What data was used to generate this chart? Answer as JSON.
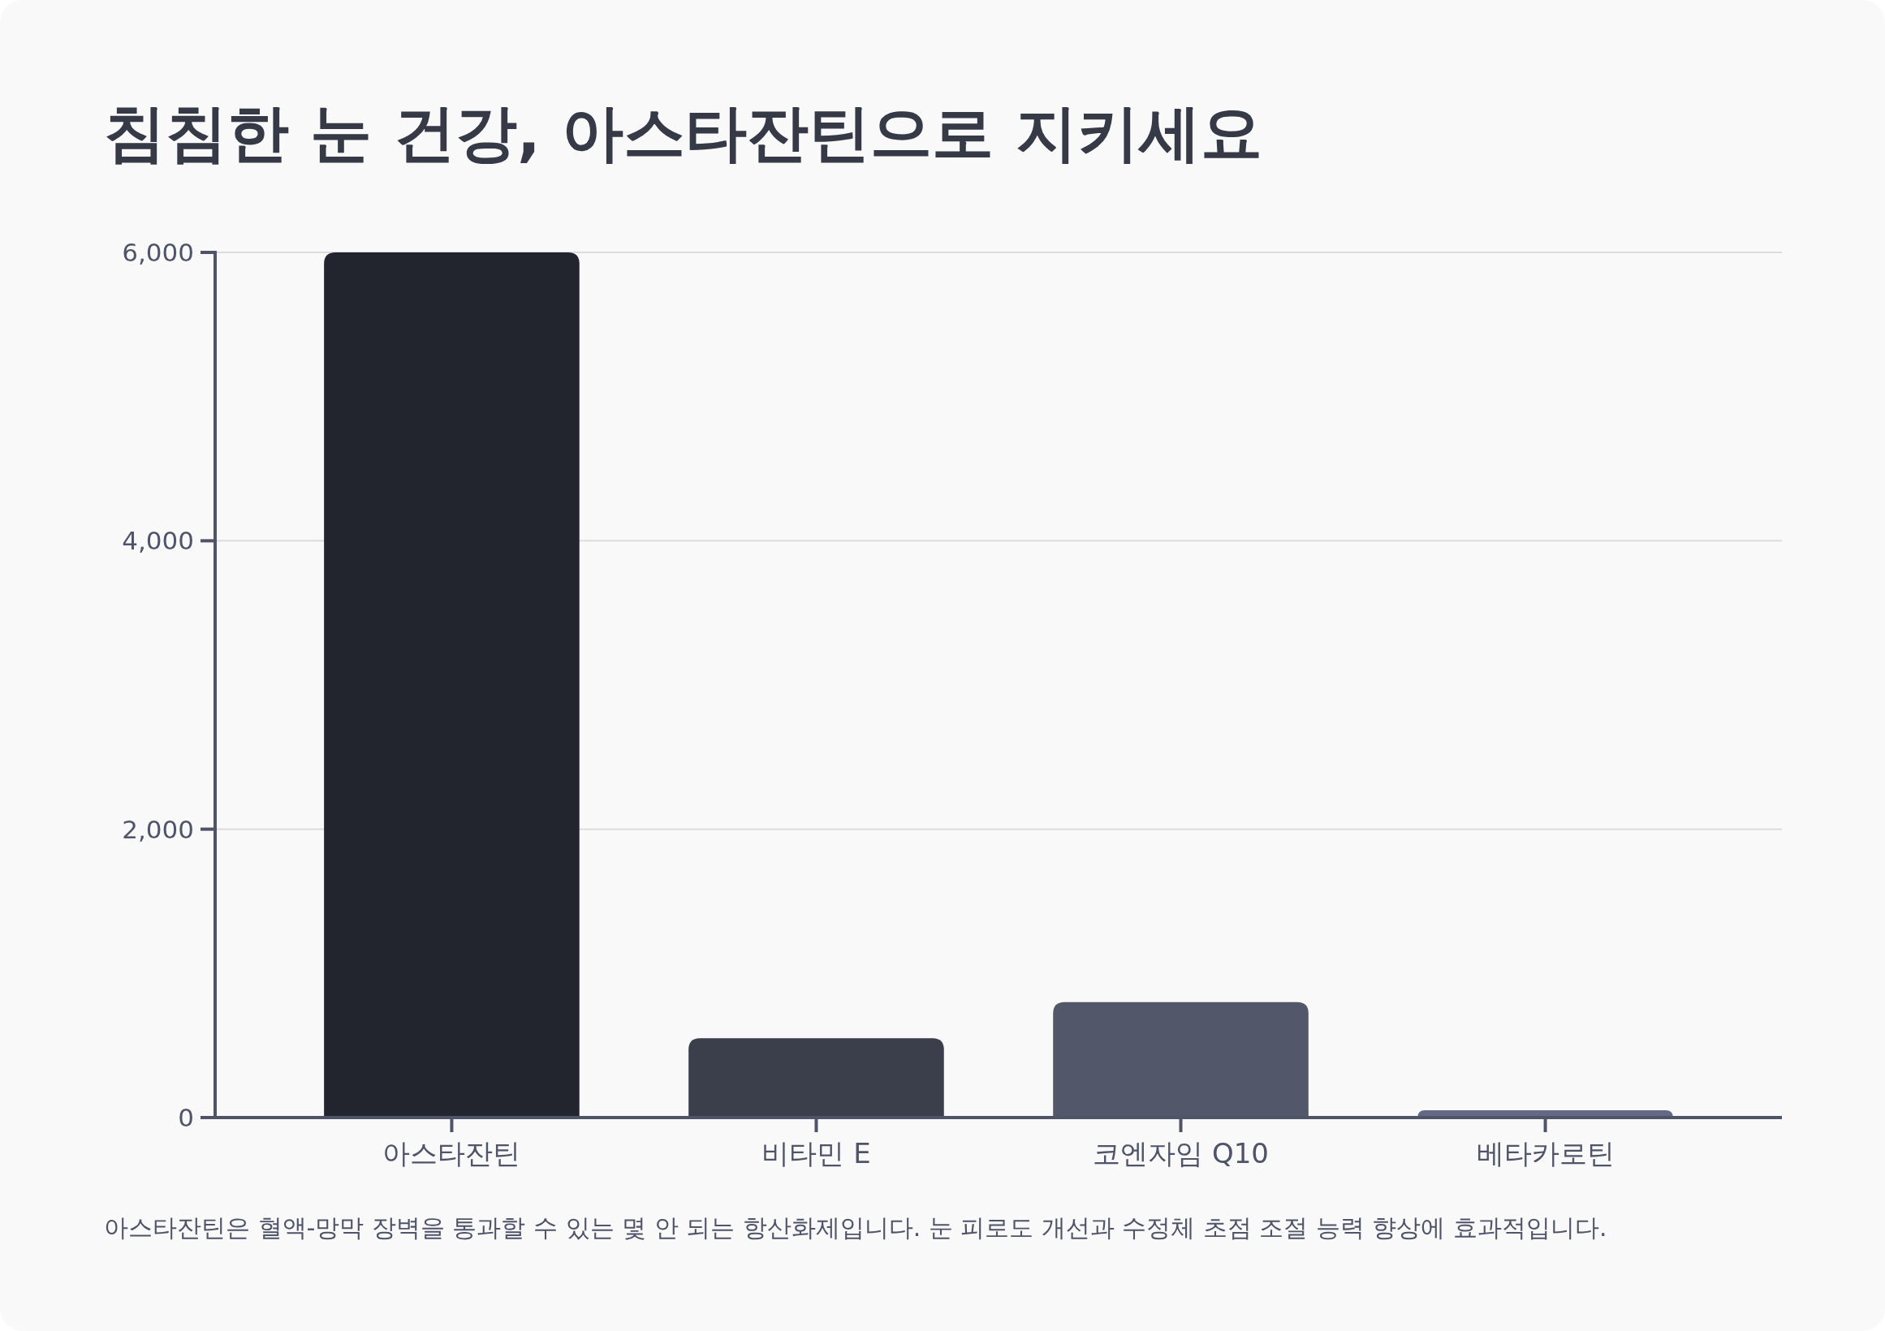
{
  "chart_data": {
    "type": "bar",
    "title": "침침한 눈 건강, 아스타잔틴으로 지키세요",
    "categories": [
      "아스타잔틴",
      "비타민 E",
      "코엔자임 Q10",
      "베타카로틴"
    ],
    "values": [
      6000,
      550,
      800,
      50
    ],
    "colors": [
      "#22252d",
      "#3a3f4b",
      "#525769",
      "#646a85"
    ],
    "ylim": [
      0,
      6000
    ],
    "yticks": [
      0,
      {
        "value": 2000,
        "label": "2,000"
      },
      {
        "value": 4000,
        "label": "4,000"
      },
      {
        "value": 6000,
        "label": "6,000"
      }
    ],
    "grid": "y",
    "annotations": [
      "아스타잔틴은 혈액-망막 장벽을 통과할 수 있는 몇 안 되는 항산화제입니다. 눈 피로도 개선과 수정체 초점 조절 능력 향상에 효과적입니다."
    ]
  }
}
